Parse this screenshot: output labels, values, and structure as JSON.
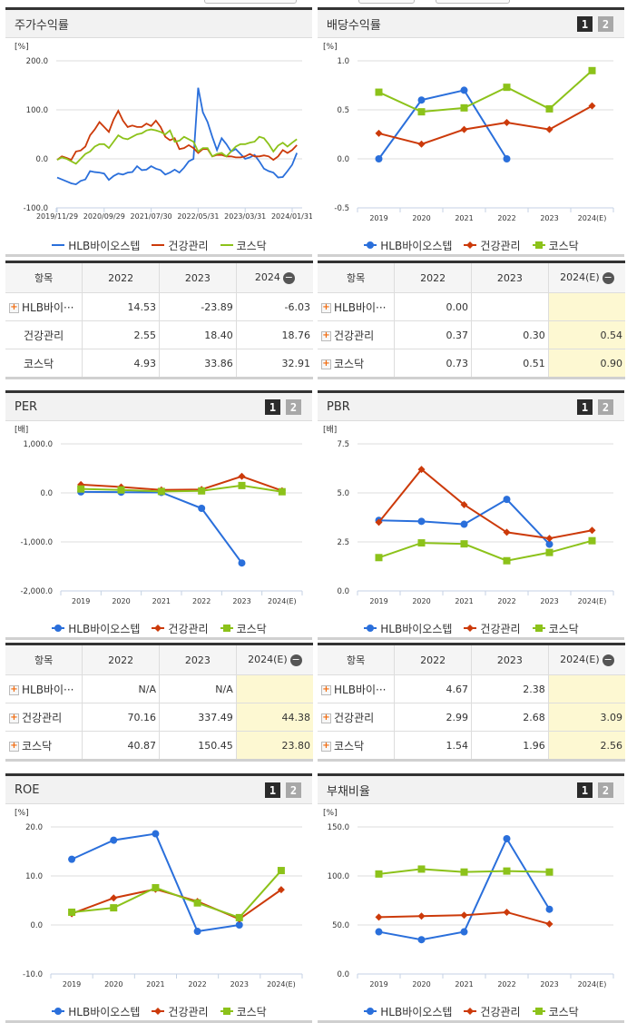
{
  "colors": {
    "hlb": "#2a6fdb",
    "health": "#cc3a0a",
    "kosdaq": "#8cc21a",
    "highlight": "#fdf8d2"
  },
  "legend": [
    "HLB바이오스텝",
    "건강관리",
    "코스닥"
  ],
  "tab_labels": [
    "1",
    "2"
  ],
  "panels": [
    {
      "title": "주가수익률",
      "unit": "[%]",
      "tabs": false,
      "chart_data": {
        "type": "line",
        "ylim": [
          -100,
          200
        ],
        "yticks": [
          -100,
          0,
          100,
          200
        ],
        "ytick_labels": [
          "-100.0",
          "0.0",
          "100.0",
          "200.0"
        ],
        "x": [
          "2019/11",
          "2019/12",
          "2020/01",
          "2020/02",
          "2020/03",
          "2020/04",
          "2020/05",
          "2020/06",
          "2020/07",
          "2020/08",
          "2020/09",
          "2020/10",
          "2020/11",
          "2020/12",
          "2021/01",
          "2021/02",
          "2021/03",
          "2021/04",
          "2021/05",
          "2021/06",
          "2021/07",
          "2021/08",
          "2021/09",
          "2021/10",
          "2021/11",
          "2021/12",
          "2022/01",
          "2022/02",
          "2022/03",
          "2022/04",
          "2022/05",
          "2022/06",
          "2022/07",
          "2022/08",
          "2022/09",
          "2022/10",
          "2022/11",
          "2022/12",
          "2023/01",
          "2023/02",
          "2023/03",
          "2023/04",
          "2023/05",
          "2023/06",
          "2023/07",
          "2023/08",
          "2023/09",
          "2023/10",
          "2023/11",
          "2023/12",
          "2024/01",
          "2024/02"
        ],
        "xtick_labels": [
          "2019/11/29",
          "2020/09/29",
          "2021/07/30",
          "2022/05/31",
          "2023/03/31",
          "2024/01/31"
        ],
        "series": [
          {
            "name": "HLB바이오스텝",
            "values": [
              -38,
              -42,
              -46,
              -50,
              -52,
              -45,
              -42,
              -25,
              -27,
              -28,
              -30,
              -43,
              -35,
              -30,
              -32,
              -28,
              -27,
              -15,
              -23,
              -22,
              -15,
              -20,
              -23,
              -32,
              -28,
              -22,
              -28,
              -18,
              -5,
              0,
              145,
              95,
              75,
              45,
              18,
              42,
              30,
              15,
              20,
              10,
              0,
              3,
              8,
              -5,
              -20,
              -25,
              -28,
              -38,
              -37,
              -25,
              -12,
              12
            ]
          },
          {
            "name": "건강관리",
            "values": [
              -2,
              5,
              2,
              -2,
              15,
              17,
              25,
              48,
              60,
              75,
              65,
              55,
              80,
              98,
              78,
              65,
              68,
              65,
              65,
              72,
              67,
              78,
              65,
              45,
              38,
              42,
              20,
              22,
              28,
              22,
              12,
              20,
              20,
              5,
              8,
              8,
              5,
              5,
              3,
              3,
              5,
              10,
              5,
              5,
              7,
              5,
              -2,
              5,
              18,
              12,
              18,
              28
            ]
          },
          {
            "name": "코스닥",
            "values": [
              -2,
              3,
              0,
              -5,
              -10,
              0,
              10,
              15,
              25,
              30,
              30,
              22,
              35,
              48,
              42,
              40,
              45,
              50,
              52,
              58,
              60,
              58,
              55,
              50,
              58,
              35,
              37,
              45,
              40,
              35,
              15,
              22,
              22,
              5,
              10,
              12,
              5,
              15,
              25,
              30,
              30,
              33,
              35,
              45,
              42,
              30,
              15,
              27,
              33,
              25,
              33,
              40
            ]
          }
        ]
      }
    },
    {
      "title": "배당수익률",
      "unit": "[%]",
      "tabs": true,
      "chart_data": {
        "type": "line",
        "categories": [
          "2019",
          "2020",
          "2021",
          "2022",
          "2023",
          "2024(E)"
        ],
        "ylim": [
          -0.5,
          1.0
        ],
        "yticks": [
          -0.5,
          0,
          0.5,
          1.0
        ],
        "ytick_labels": [
          "-0.5",
          "0.0",
          "0.5",
          "1.0"
        ],
        "series": [
          {
            "name": "HLB바이오스텝",
            "values": [
              0.0,
              0.6,
              0.7,
              0.0,
              null,
              null
            ]
          },
          {
            "name": "건강관리",
            "values": [
              0.26,
              0.15,
              0.3,
              0.37,
              0.3,
              0.54
            ]
          },
          {
            "name": "코스닥",
            "values": [
              0.68,
              0.48,
              0.52,
              0.73,
              0.51,
              0.9
            ]
          }
        ]
      }
    },
    {
      "title": "PER",
      "unit": "[배]",
      "tabs": true,
      "chart_data": {
        "type": "line",
        "categories": [
          "2019",
          "2020",
          "2021",
          "2022",
          "2023",
          "2024(E)"
        ],
        "ylim": [
          -2000,
          1000
        ],
        "yticks": [
          -2000,
          -1000,
          0,
          1000
        ],
        "ytick_labels": [
          "-2,000.0",
          "-1,000.0",
          "0.0",
          "1,000.0"
        ],
        "series": [
          {
            "name": "HLB바이오스텝",
            "values": [
              20,
              15,
              10,
              -315,
              -1430,
              null
            ]
          },
          {
            "name": "건강관리",
            "values": [
              170,
              120,
              60,
              70.16,
              337.49,
              44.38
            ]
          },
          {
            "name": "코스닥",
            "values": [
              80,
              60,
              30,
              40.87,
              150.45,
              23.8
            ]
          }
        ]
      }
    },
    {
      "title": "PBR",
      "unit": "[배]",
      "tabs": true,
      "chart_data": {
        "type": "line",
        "categories": [
          "2019",
          "2020",
          "2021",
          "2022",
          "2023",
          "2024(E)"
        ],
        "ylim": [
          0,
          7.5
        ],
        "yticks": [
          0,
          2.5,
          5.0,
          7.5
        ],
        "ytick_labels": [
          "0.0",
          "2.5",
          "5.0",
          "7.5"
        ],
        "series": [
          {
            "name": "HLB바이오스텝",
            "values": [
              3.6,
              3.55,
              3.4,
              4.67,
              2.38,
              null
            ]
          },
          {
            "name": "건강관리",
            "values": [
              3.5,
              6.2,
              4.4,
              2.99,
              2.68,
              3.09
            ]
          },
          {
            "name": "코스닥",
            "values": [
              1.7,
              2.45,
              2.4,
              1.54,
              1.96,
              2.56
            ]
          }
        ]
      }
    },
    {
      "title": "ROE",
      "unit": "[%]",
      "tabs": true,
      "chart_data": {
        "type": "line",
        "categories": [
          "2019",
          "2020",
          "2021",
          "2022",
          "2023",
          "2024(E)"
        ],
        "ylim": [
          -10,
          20
        ],
        "yticks": [
          -10,
          0,
          10,
          20
        ],
        "ytick_labels": [
          "-10.0",
          "0.0",
          "10.0",
          "20.0"
        ],
        "series": [
          {
            "name": "HLB바이오스텝",
            "values": [
              13.4,
              17.3,
              18.6,
              -1.3,
              0.0,
              null
            ]
          },
          {
            "name": "건강관리",
            "values": [
              2.3,
              5.5,
              7.3,
              4.8,
              1.2,
              7.2
            ]
          },
          {
            "name": "코스닥",
            "values": [
              2.6,
              3.5,
              7.6,
              4.5,
              1.5,
              11.1
            ]
          }
        ]
      }
    },
    {
      "title": "부채비율",
      "unit": "[%]",
      "tabs": true,
      "chart_data": {
        "type": "line",
        "categories": [
          "2019",
          "2020",
          "2021",
          "2022",
          "2023",
          "2024(E)"
        ],
        "ylim": [
          0,
          150
        ],
        "yticks": [
          0,
          50,
          100,
          150
        ],
        "ytick_labels": [
          "0.0",
          "50.0",
          "100.0",
          "150.0"
        ],
        "series": [
          {
            "name": "HLB바이오스텝",
            "values": [
              43,
              35,
              43,
              138,
              66,
              null
            ]
          },
          {
            "name": "건강관리",
            "values": [
              58,
              59,
              60,
              63,
              51,
              null
            ]
          },
          {
            "name": "코스닥",
            "values": [
              102,
              107,
              104,
              105,
              104,
              null
            ]
          }
        ]
      }
    }
  ],
  "tables": [
    {
      "headers": [
        "항목",
        "2022",
        "2023",
        "2024"
      ],
      "highlight_last": false,
      "rows": [
        {
          "name": "HLB바이···",
          "plus": true,
          "values": [
            "14.53",
            "-23.89",
            "-6.03"
          ]
        },
        {
          "name": "건강관리",
          "plus": false,
          "values": [
            "2.55",
            "18.40",
            "18.76"
          ]
        },
        {
          "name": "코스닥",
          "plus": false,
          "values": [
            "4.93",
            "33.86",
            "32.91"
          ]
        }
      ]
    },
    {
      "headers": [
        "항목",
        "2022",
        "2023",
        "2024(E)"
      ],
      "highlight_last": true,
      "rows": [
        {
          "name": "HLB바이···",
          "plus": true,
          "values": [
            "0.00",
            "",
            ""
          ]
        },
        {
          "name": "건강관리",
          "plus": true,
          "values": [
            "0.37",
            "0.30",
            "0.54"
          ]
        },
        {
          "name": "코스닥",
          "plus": true,
          "values": [
            "0.73",
            "0.51",
            "0.90"
          ]
        }
      ]
    },
    {
      "headers": [
        "항목",
        "2022",
        "2023",
        "2024(E)"
      ],
      "highlight_last": true,
      "rows": [
        {
          "name": "HLB바이···",
          "plus": true,
          "values": [
            "N/A",
            "N/A",
            ""
          ]
        },
        {
          "name": "건강관리",
          "plus": true,
          "values": [
            "70.16",
            "337.49",
            "44.38"
          ]
        },
        {
          "name": "코스닥",
          "plus": true,
          "values": [
            "40.87",
            "150.45",
            "23.80"
          ]
        }
      ]
    },
    {
      "headers": [
        "항목",
        "2022",
        "2023",
        "2024(E)"
      ],
      "highlight_last": true,
      "rows": [
        {
          "name": "HLB바이···",
          "plus": true,
          "values": [
            "4.67",
            "2.38",
            ""
          ]
        },
        {
          "name": "건강관리",
          "plus": true,
          "values": [
            "2.99",
            "2.68",
            "3.09"
          ]
        },
        {
          "name": "코스닥",
          "plus": true,
          "values": [
            "1.54",
            "1.96",
            "2.56"
          ]
        }
      ]
    }
  ]
}
